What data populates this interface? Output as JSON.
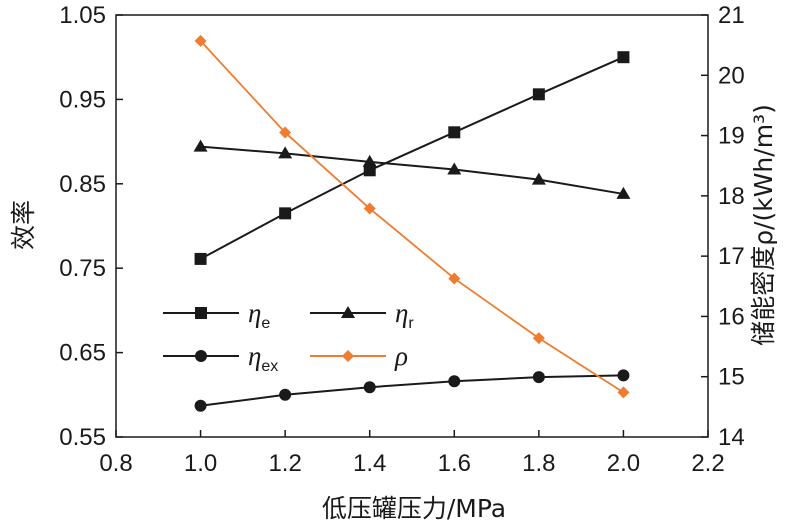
{
  "chart_data": {
    "type": "line",
    "xlabel": "低压罐压力/MPa",
    "ylabel_left": "效率",
    "ylabel_right": "储能密度ρ/(kWh/m³)",
    "xlim": [
      0.8,
      2.2
    ],
    "xticks": [
      "0.8",
      "1.0",
      "1.2",
      "1.4",
      "1.6",
      "1.8",
      "2.0",
      "2.2"
    ],
    "ylim_left": [
      0.55,
      1.05
    ],
    "yticks_left": [
      "0.55",
      "0.65",
      "0.75",
      "0.85",
      "0.95",
      "1.05"
    ],
    "ylim_right": [
      14,
      21
    ],
    "yticks_right": [
      "14",
      "15",
      "16",
      "17",
      "18",
      "19",
      "20",
      "21"
    ],
    "grid": false,
    "legend_position": "lower-left",
    "x": [
      1.0,
      1.2,
      1.4,
      1.6,
      1.8,
      2.0
    ],
    "series": [
      {
        "name": "ηe",
        "sym": "η",
        "sub": "e",
        "axis": "left",
        "marker": "square",
        "color": "#1a1a1a",
        "values": [
          0.761,
          0.815,
          0.866,
          0.911,
          0.956,
          1.0
        ]
      },
      {
        "name": "ηr",
        "sym": "η",
        "sub": "r",
        "axis": "left",
        "marker": "triangle",
        "color": "#1a1a1a",
        "values": [
          0.894,
          0.886,
          0.876,
          0.867,
          0.855,
          0.838
        ]
      },
      {
        "name": "ηex",
        "sym": "η",
        "sub": "ex",
        "axis": "left",
        "marker": "circle",
        "color": "#1a1a1a",
        "values": [
          0.587,
          0.6,
          0.609,
          0.616,
          0.621,
          0.623
        ]
      },
      {
        "name": "ρ",
        "sym": "ρ",
        "sub": "",
        "axis": "right",
        "marker": "diamond",
        "color": "#ee7d31",
        "values": [
          20.57,
          19.05,
          17.79,
          16.63,
          15.64,
          14.74
        ]
      }
    ]
  }
}
